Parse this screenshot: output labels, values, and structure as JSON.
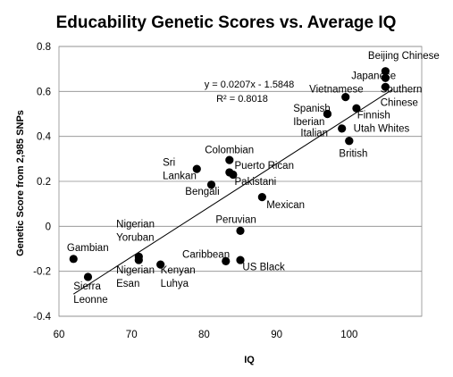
{
  "chart_data": {
    "type": "scatter",
    "title": "Educability Genetic Scores vs. Average IQ",
    "xlabel": "IQ",
    "ylabel": "Genetic Score from 2,985 SNPs",
    "xlim": [
      60,
      110
    ],
    "ylim": [
      -0.4,
      0.8
    ],
    "x_ticks": [
      "60",
      "70",
      "80",
      "90",
      "100"
    ],
    "y_ticks": [
      "-0.4",
      "-0.2",
      "0",
      "0.2",
      "0.4",
      "0.6",
      "0.8"
    ],
    "grid": true,
    "marker_color": "#000000",
    "trendline": {
      "equation": "y = 0.0207x - 1.5848",
      "r_squared": "R² = 0.8018",
      "slope": 0.0207,
      "intercept": -1.5848
    },
    "points": [
      {
        "name": "Beijing Chinese",
        "x": 105,
        "y": 0.69
      },
      {
        "name": "Japanese",
        "x": 105,
        "y": 0.66
      },
      {
        "name": "Southern Chinese",
        "x": 105,
        "y": 0.62
      },
      {
        "name": "Vietnamese",
        "x": 99.5,
        "y": 0.575
      },
      {
        "name": "Finnish",
        "x": 101,
        "y": 0.525
      },
      {
        "name": "Spanish",
        "x": 97,
        "y": 0.5
      },
      {
        "name": "Iberian",
        "x": 97,
        "y": 0.5
      },
      {
        "name": "Italian",
        "x": 99,
        "y": 0.435
      },
      {
        "name": "Utah Whites",
        "x": 100,
        "y": 0.38
      },
      {
        "name": "British",
        "x": 100,
        "y": 0.38
      },
      {
        "name": "Colombian",
        "x": 83.5,
        "y": 0.295
      },
      {
        "name": "Sri Lankan",
        "x": 79,
        "y": 0.255
      },
      {
        "name": "Puerto Rican",
        "x": 83.5,
        "y": 0.24
      },
      {
        "name": "Pakistani",
        "x": 84,
        "y": 0.23
      },
      {
        "name": "Bengali",
        "x": 81,
        "y": 0.185
      },
      {
        "name": "Mexican",
        "x": 88,
        "y": 0.13
      },
      {
        "name": "Peruvian",
        "x": 85,
        "y": -0.02
      },
      {
        "name": "Nigerian Yoruban",
        "x": 71,
        "y": -0.135
      },
      {
        "name": "Nigerian Esan",
        "x": 71,
        "y": -0.15
      },
      {
        "name": "Gambian",
        "x": 62,
        "y": -0.145
      },
      {
        "name": "Kenyan Luhya",
        "x": 74,
        "y": -0.17
      },
      {
        "name": "Caribbean",
        "x": 83,
        "y": -0.155
      },
      {
        "name": "US Black",
        "x": 85,
        "y": -0.15
      },
      {
        "name": "Sierra Leonne",
        "x": 64,
        "y": -0.225
      }
    ],
    "labels": [
      {
        "text": "Beijing Chinese",
        "x": 102.6,
        "y": 0.745,
        "lines": [
          "Beijing Chinese"
        ]
      },
      {
        "text": "Japanese",
        "x": 100.3,
        "y": 0.655,
        "lines": [
          "Japanese"
        ]
      },
      {
        "text": "Vietnamese",
        "x": 94.5,
        "y": 0.595,
        "lines": [
          "Vietnamese"
        ]
      },
      {
        "text": "Southern Chinese",
        "x": 104.3,
        "y": 0.595,
        "lines": [
          "Southern",
          "Chinese"
        ]
      },
      {
        "text": "Spanish Iberian",
        "x": 92.3,
        "y": 0.51,
        "lines": [
          "Spanish",
          "Iberian"
        ]
      },
      {
        "text": "Finnish",
        "x": 101.1,
        "y": 0.48,
        "lines": [
          "Finnish"
        ]
      },
      {
        "text": "Italian",
        "x": 93.3,
        "y": 0.4,
        "lines": [
          "Italian"
        ]
      },
      {
        "text": "Utah Whites",
        "x": 100.6,
        "y": 0.42,
        "lines": [
          "Utah Whites"
        ]
      },
      {
        "text": "British",
        "x": 98.6,
        "y": 0.31,
        "lines": [
          "British"
        ]
      },
      {
        "text": "Colombian",
        "x": 80.1,
        "y": 0.325,
        "lines": [
          "Colombian"
        ]
      },
      {
        "text": "Sri Lankan",
        "x": 74.3,
        "y": 0.27,
        "lines": [
          "Sri",
          "Lankan"
        ]
      },
      {
        "text": "Puerto Rican",
        "x": 84.2,
        "y": 0.255,
        "lines": [
          "Puerto Rican"
        ]
      },
      {
        "text": "Pakistani",
        "x": 84.2,
        "y": 0.185,
        "lines": [
          "Pakistani"
        ]
      },
      {
        "text": "Bengali",
        "x": 77.4,
        "y": 0.14,
        "lines": [
          "Bengali"
        ]
      },
      {
        "text": "Mexican",
        "x": 88.6,
        "y": 0.08,
        "lines": [
          "Mexican"
        ]
      },
      {
        "text": "Peruvian",
        "x": 81.6,
        "y": 0.015,
        "lines": [
          "Peruvian"
        ]
      },
      {
        "text": "Nigerian Yoruban",
        "x": 67.9,
        "y": -0.005,
        "lines": [
          "Nigerian",
          "Yoruban"
        ]
      },
      {
        "text": "Gambian",
        "x": 61.1,
        "y": -0.11,
        "lines": [
          "Gambian"
        ]
      },
      {
        "text": "Caribbean",
        "x": 77,
        "y": -0.14,
        "lines": [
          "Caribbean"
        ]
      },
      {
        "text": "Nigerian Esan",
        "x": 67.9,
        "y": -0.21,
        "lines": [
          "Nigerian",
          "Esan"
        ]
      },
      {
        "text": "Kenyan Luhya",
        "x": 74,
        "y": -0.21,
        "lines": [
          "Kenyan",
          "Luhya"
        ]
      },
      {
        "text": "US Black",
        "x": 85.3,
        "y": -0.195,
        "lines": [
          "US Black"
        ]
      },
      {
        "text": "Sierra Leonne",
        "x": 62,
        "y": -0.28,
        "lines": [
          "Sierra",
          "Leonne"
        ]
      }
    ]
  }
}
